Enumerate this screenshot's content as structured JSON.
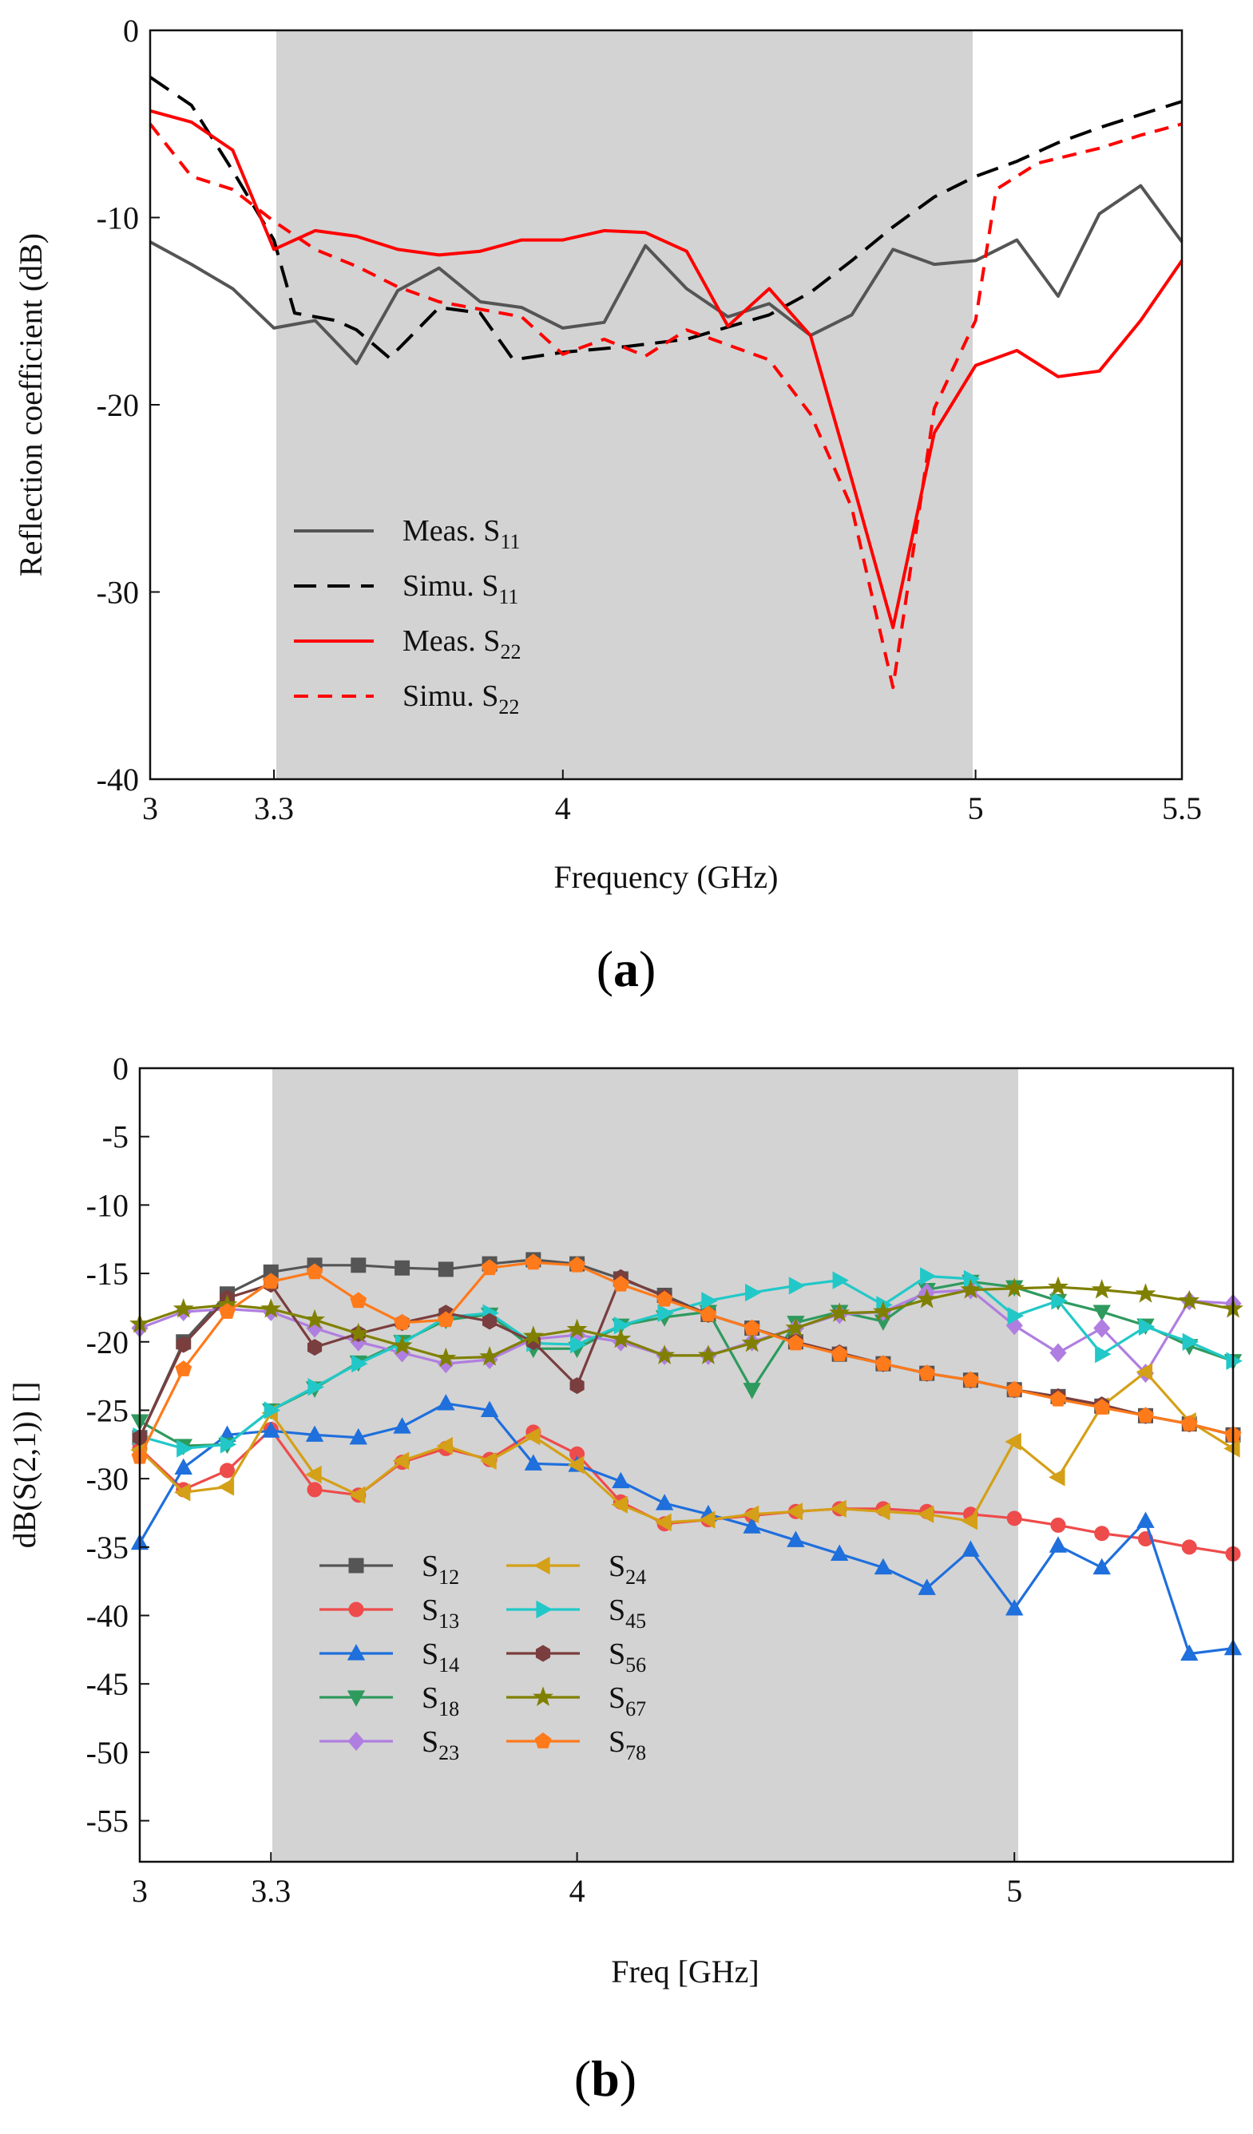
{
  "colors": {
    "band": "#d3d3d3",
    "meas_s11": "#555555",
    "simu_s11": "#000000",
    "s22": "#ff0000"
  },
  "panels": {
    "a": "a",
    "b": "b"
  },
  "chart_data": [
    {
      "type": "line",
      "panel": "a",
      "xlabel": "Frequency (GHz)",
      "ylabel": "Reflection coefficient (dB)",
      "xlim": [
        3,
        5.5
      ],
      "ylim": [
        -40,
        0
      ],
      "xticks": [
        3,
        3.3,
        4,
        5,
        5.5
      ],
      "yticks": [
        0,
        -10,
        -20,
        -30,
        -40
      ],
      "shaded_band": [
        3.3,
        5
      ],
      "legend_position": "lower-left",
      "series": [
        {
          "name": "Meas. S",
          "sub": "11",
          "color": "#555555",
          "dash": "solid",
          "points": [
            [
              3.0,
              -11.3
            ],
            [
              3.1,
              -12.5
            ],
            [
              3.2,
              -13.8
            ],
            [
              3.3,
              -15.9
            ],
            [
              3.4,
              -15.5
            ],
            [
              3.5,
              -17.8
            ],
            [
              3.6,
              -13.9
            ],
            [
              3.7,
              -12.7
            ],
            [
              3.8,
              -14.5
            ],
            [
              3.9,
              -14.8
            ],
            [
              4.0,
              -15.9
            ],
            [
              4.1,
              -15.6
            ],
            [
              4.2,
              -11.5
            ],
            [
              4.3,
              -13.8
            ],
            [
              4.4,
              -15.3
            ],
            [
              4.5,
              -14.6
            ],
            [
              4.6,
              -16.3
            ],
            [
              4.7,
              -15.2
            ],
            [
              4.8,
              -11.7
            ],
            [
              4.9,
              -12.5
            ],
            [
              5.0,
              -12.3
            ],
            [
              5.1,
              -11.2
            ],
            [
              5.2,
              -14.2
            ],
            [
              5.3,
              -9.8
            ],
            [
              5.4,
              -8.3
            ],
            [
              5.5,
              -11.3
            ]
          ]
        },
        {
          "name": "Simu. S",
          "sub": "11",
          "color": "#000000",
          "dash": "long",
          "points": [
            [
              3.0,
              -2.5
            ],
            [
              3.1,
              -4.0
            ],
            [
              3.2,
              -7.5
            ],
            [
              3.3,
              -11.2
            ],
            [
              3.35,
              -15.1
            ],
            [
              3.45,
              -15.5
            ],
            [
              3.5,
              -16.0
            ],
            [
              3.58,
              -17.5
            ],
            [
              3.7,
              -14.8
            ],
            [
              3.8,
              -15.1
            ],
            [
              3.88,
              -17.6
            ],
            [
              4.0,
              -17.2
            ],
            [
              4.15,
              -16.9
            ],
            [
              4.3,
              -16.5
            ],
            [
              4.5,
              -15.2
            ],
            [
              4.6,
              -14.0
            ],
            [
              4.7,
              -12.3
            ],
            [
              4.8,
              -10.5
            ],
            [
              4.9,
              -8.9
            ],
            [
              5.0,
              -7.8
            ],
            [
              5.1,
              -7.0
            ],
            [
              5.2,
              -6.0
            ],
            [
              5.3,
              -5.2
            ],
            [
              5.4,
              -4.5
            ],
            [
              5.5,
              -3.8
            ]
          ]
        },
        {
          "name": "Meas. S",
          "sub": "22",
          "color": "#ff0000",
          "dash": "solid",
          "points": [
            [
              3.0,
              -4.3
            ],
            [
              3.1,
              -4.9
            ],
            [
              3.2,
              -6.4
            ],
            [
              3.3,
              -11.7
            ],
            [
              3.4,
              -10.7
            ],
            [
              3.5,
              -11.0
            ],
            [
              3.6,
              -11.7
            ],
            [
              3.7,
              -12.0
            ],
            [
              3.8,
              -11.8
            ],
            [
              3.9,
              -11.2
            ],
            [
              4.0,
              -11.2
            ],
            [
              4.1,
              -10.7
            ],
            [
              4.2,
              -10.8
            ],
            [
              4.3,
              -11.8
            ],
            [
              4.4,
              -15.8
            ],
            [
              4.5,
              -13.8
            ],
            [
              4.6,
              -16.3
            ],
            [
              4.7,
              -24.0
            ],
            [
              4.8,
              -31.9
            ],
            [
              4.9,
              -21.5
            ],
            [
              5.0,
              -17.9
            ],
            [
              5.1,
              -17.1
            ],
            [
              5.2,
              -18.5
            ],
            [
              5.3,
              -18.2
            ],
            [
              5.4,
              -15.5
            ],
            [
              5.5,
              -12.3
            ]
          ]
        },
        {
          "name": "Simu. S",
          "sub": "22",
          "color": "#ff0000",
          "dash": "short",
          "points": [
            [
              3.0,
              -5.0
            ],
            [
              3.1,
              -7.8
            ],
            [
              3.2,
              -8.5
            ],
            [
              3.3,
              -10.2
            ],
            [
              3.4,
              -11.7
            ],
            [
              3.5,
              -12.6
            ],
            [
              3.6,
              -13.7
            ],
            [
              3.7,
              -14.5
            ],
            [
              3.8,
              -14.9
            ],
            [
              3.9,
              -15.3
            ],
            [
              4.0,
              -17.3
            ],
            [
              4.1,
              -16.5
            ],
            [
              4.2,
              -17.4
            ],
            [
              4.3,
              -16.0
            ],
            [
              4.4,
              -16.8
            ],
            [
              4.5,
              -17.6
            ],
            [
              4.6,
              -20.5
            ],
            [
              4.7,
              -25.5
            ],
            [
              4.8,
              -35.1
            ],
            [
              4.9,
              -20.2
            ],
            [
              5.0,
              -15.5
            ],
            [
              5.05,
              -8.5
            ],
            [
              5.15,
              -7.1
            ],
            [
              5.3,
              -6.3
            ],
            [
              5.4,
              -5.6
            ],
            [
              5.5,
              -5.0
            ]
          ]
        }
      ]
    },
    {
      "type": "line",
      "panel": "b",
      "xlabel": "Freq [GHz]",
      "ylabel": "dB(S(2,1)) []",
      "xlim": [
        3,
        5.5
      ],
      "ylim": [
        -58,
        0
      ],
      "xticks": [
        3,
        3.3,
        4,
        5
      ],
      "yticks": [
        0,
        -5,
        -10,
        -15,
        -20,
        -25,
        -30,
        -35,
        -40,
        -45,
        -50,
        -55
      ],
      "shaded_band": [
        3.3,
        5
      ],
      "legend_position": "lower-left",
      "x": [
        3.0,
        3.1,
        3.2,
        3.3,
        3.4,
        3.5,
        3.6,
        3.7,
        3.8,
        3.9,
        4.0,
        4.1,
        4.2,
        4.3,
        4.4,
        4.5,
        4.6,
        4.7,
        4.8,
        4.9,
        5.0,
        5.1,
        5.2,
        5.3,
        5.4,
        5.5
      ],
      "series": [
        {
          "name": "S",
          "sub": "12",
          "color": "#555555",
          "marker": "square",
          "values": [
            -27.0,
            -20.0,
            -16.5,
            -14.9,
            -14.4,
            -14.4,
            -14.6,
            -14.7,
            -14.3,
            -14.0,
            -14.3,
            -15.4,
            -16.6,
            -18.0,
            -19.0,
            -20.0,
            -20.9,
            -21.6,
            -22.3,
            -22.8,
            -23.5,
            -24.0,
            -24.7,
            -25.4,
            -26.0,
            -26.8
          ]
        },
        {
          "name": "S",
          "sub": "13",
          "color": "#ee4b4b",
          "marker": "circle",
          "values": [
            -27.8,
            -30.8,
            -29.4,
            -26.4,
            -30.8,
            -31.2,
            -28.8,
            -27.8,
            -28.6,
            -26.6,
            -28.2,
            -31.7,
            -33.3,
            -33.0,
            -32.7,
            -32.4,
            -32.2,
            -32.2,
            -32.4,
            -32.6,
            -32.9,
            -33.4,
            -34.0,
            -34.4,
            -35.0,
            -35.5
          ]
        },
        {
          "name": "S",
          "sub": "14",
          "color": "#1f6fdc",
          "marker": "triangle-up",
          "values": [
            -34.7,
            -29.2,
            -26.8,
            -26.5,
            -26.8,
            -27.0,
            -26.2,
            -24.5,
            -25.0,
            -28.9,
            -29.0,
            -30.2,
            -31.8,
            -32.6,
            -33.5,
            -34.5,
            -35.5,
            -36.5,
            -38.0,
            -35.2,
            -39.5,
            -34.9,
            -36.5,
            -33.1,
            -42.8,
            -42.4
          ]
        },
        {
          "name": "S",
          "sub": "18",
          "color": "#2e9a5e",
          "marker": "triangle-down",
          "values": [
            -25.8,
            -27.6,
            -27.5,
            -25.0,
            -23.4,
            -21.5,
            -20.0,
            -18.4,
            -18.0,
            -20.5,
            -20.5,
            -18.8,
            -18.2,
            -17.8,
            -23.5,
            -18.6,
            -17.8,
            -18.5,
            -16.2,
            -15.6,
            -16.0,
            -17.0,
            -17.8,
            -18.8,
            -20.3,
            -21.4
          ]
        },
        {
          "name": "S",
          "sub": "23",
          "color": "#b07ee0",
          "marker": "diamond",
          "values": [
            -19.0,
            -17.8,
            -17.6,
            -17.8,
            -19.0,
            -20.0,
            -20.8,
            -21.6,
            -21.3,
            -19.8,
            -19.5,
            -20.0,
            -21.0,
            -21.0,
            -20.0,
            -19.0,
            -18.0,
            -17.8,
            -16.4,
            -16.2,
            -18.8,
            -20.8,
            -19.0,
            -22.3,
            -17.0,
            -17.2
          ]
        },
        {
          "name": "S",
          "sub": "24",
          "color": "#d4a017",
          "marker": "triangle-left",
          "values": [
            -27.9,
            -31.0,
            -30.6,
            -25.2,
            -29.7,
            -31.2,
            -28.7,
            -27.6,
            -28.7,
            -26.9,
            -29.0,
            -31.9,
            -33.2,
            -33.0,
            -32.6,
            -32.4,
            -32.2,
            -32.4,
            -32.6,
            -33.1,
            -27.3,
            -29.9,
            -24.7,
            -22.2,
            -25.8,
            -27.8
          ]
        },
        {
          "name": "S",
          "sub": "45",
          "color": "#22c8c8",
          "marker": "triangle-right",
          "values": [
            -26.9,
            -27.8,
            -27.5,
            -25.0,
            -23.3,
            -21.6,
            -20.1,
            -18.2,
            -17.9,
            -20.1,
            -20.2,
            -18.8,
            -17.9,
            -17.0,
            -16.4,
            -15.9,
            -15.5,
            -17.3,
            -15.2,
            -15.4,
            -18.1,
            -17.0,
            -20.9,
            -18.9,
            -20.0,
            -21.4
          ]
        },
        {
          "name": "S",
          "sub": "56",
          "color": "#7a3e3e",
          "marker": "hexagon",
          "values": [
            -27.0,
            -20.2,
            -16.8,
            -15.8,
            -20.4,
            -19.4,
            -18.6,
            -17.9,
            -18.5,
            -20.0,
            -23.2,
            -15.3,
            -16.7,
            -18.0,
            -19.0,
            -20.0,
            -20.8,
            -21.6,
            -22.3,
            -22.8,
            -23.5,
            -24.0,
            -24.6,
            -25.4,
            -26.0,
            -26.8
          ]
        },
        {
          "name": "S",
          "sub": "67",
          "color": "#808000",
          "marker": "star",
          "values": [
            -18.7,
            -17.6,
            -17.3,
            -17.6,
            -18.4,
            -19.4,
            -20.3,
            -21.2,
            -21.1,
            -19.6,
            -19.1,
            -19.8,
            -21.0,
            -21.0,
            -20.1,
            -19.0,
            -17.9,
            -17.8,
            -16.9,
            -16.2,
            -16.1,
            -16.0,
            -16.2,
            -16.5,
            -17.0,
            -17.6
          ]
        },
        {
          "name": "S",
          "sub": "78",
          "color": "#ff7a1a",
          "marker": "pentagon",
          "values": [
            -28.4,
            -22.0,
            -17.8,
            -15.6,
            -14.9,
            -17.0,
            -18.6,
            -18.4,
            -14.6,
            -14.2,
            -14.4,
            -15.8,
            -16.9,
            -18.0,
            -19.0,
            -20.1,
            -20.9,
            -21.6,
            -22.3,
            -22.8,
            -23.5,
            -24.2,
            -24.8,
            -25.4,
            -26.0,
            -26.8
          ]
        }
      ]
    }
  ]
}
